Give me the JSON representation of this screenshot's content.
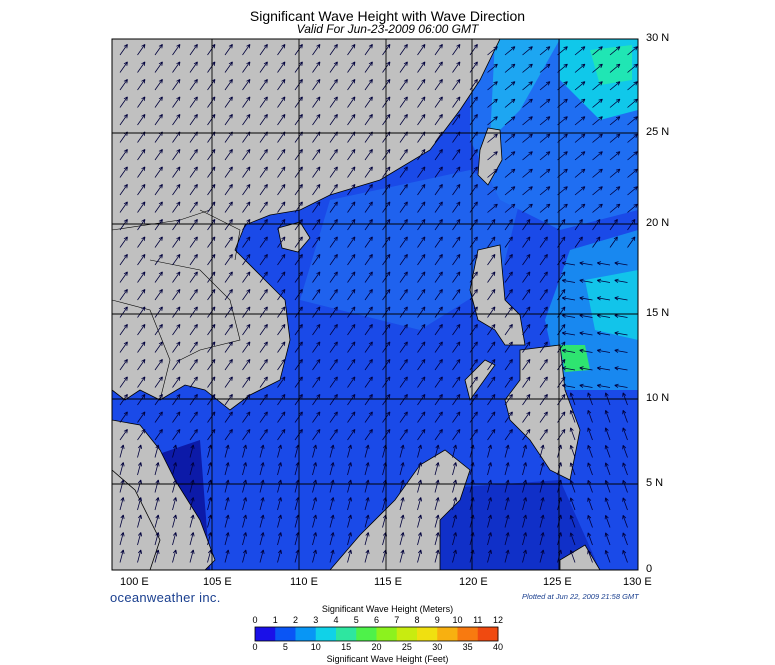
{
  "title": "Significant Wave Height with Wave Direction",
  "subtitle": "Valid For Jun-23-2009 06:00 GMT",
  "latitude_labels": [
    "30 N",
    "25 N",
    "20 N",
    "15 N",
    "10 N",
    "5 N",
    "0"
  ],
  "longitude_labels": [
    "100 E",
    "105 E",
    "110 E",
    "115 E",
    "120 E",
    "125 E",
    "130 E"
  ],
  "brand": "oceanweather inc.",
  "plotted": "Plotted at Jun 22, 2009 21:58 GMT",
  "colorbar": {
    "title_meters": "Significant Wave Height (Meters)",
    "title_feet": "Significant Wave Height (Feet)",
    "meter_ticks": [
      "0",
      "1",
      "2",
      "3",
      "4",
      "5",
      "6",
      "7",
      "8",
      "9",
      "10",
      "11",
      "12"
    ],
    "feet_ticks": [
      "0",
      "5",
      "10",
      "15",
      "20",
      "25",
      "30",
      "35",
      "40"
    ],
    "colors": [
      "#1a10e8",
      "#0a55f5",
      "#0896f5",
      "#10d2e8",
      "#2ee6a0",
      "#4ef24a",
      "#8cf21e",
      "#c8ec10",
      "#f0e010",
      "#f8b010",
      "#f87a10",
      "#f04a10"
    ]
  },
  "colors": {
    "land": "#c0c0c0",
    "sea_low": "#1848e8",
    "sea_mid": "#1c6cf0",
    "sea_deep": "#0010a8",
    "arrow": "#00003c"
  }
}
